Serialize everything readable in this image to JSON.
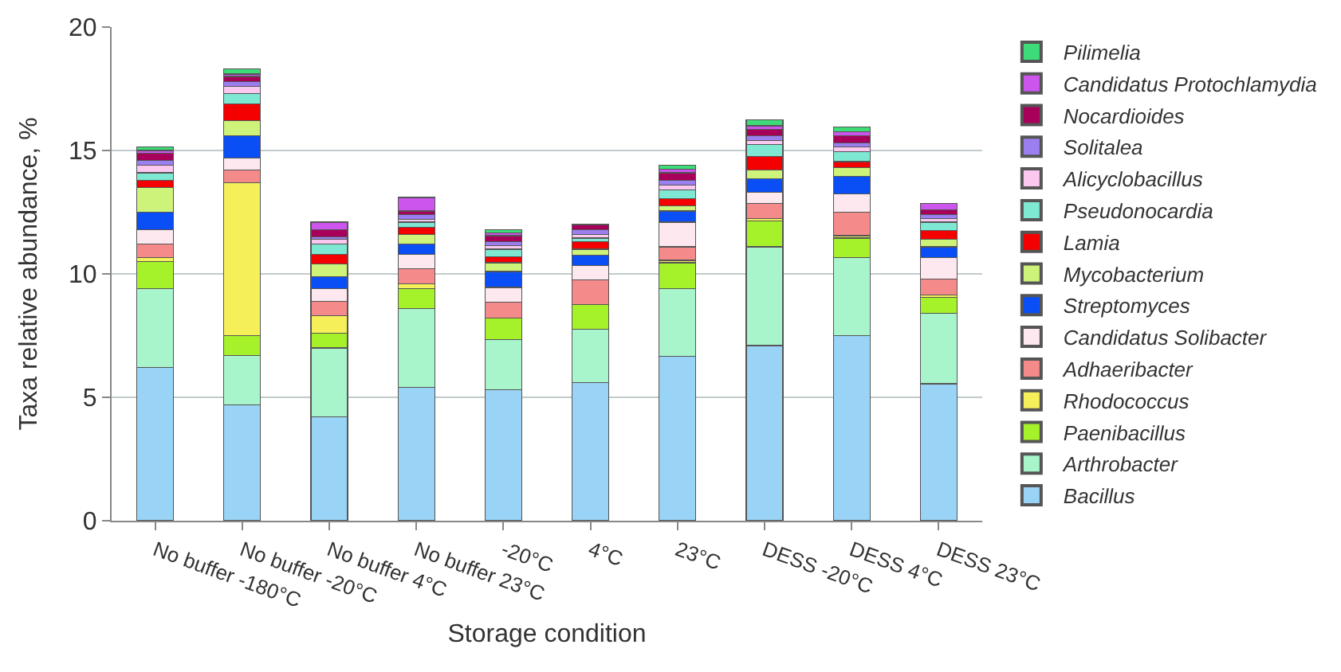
{
  "chart_data": {
    "type": "bar",
    "stacked": true,
    "xlabel": "Storage condition",
    "ylabel": "Taxa relative abundance, %",
    "categories": [
      "No buffer -180°C",
      "No buffer -20°C",
      "No buffer 4°C",
      "No buffer 23°C",
      "-20°C",
      "4°C",
      "23°C",
      "DESS -20°C",
      "DESS 4°C",
      "DESS 23°C"
    ],
    "ylim": [
      0,
      20
    ],
    "yticks": [
      0,
      5,
      10,
      15,
      20
    ],
    "grid": "y",
    "legend": "right",
    "series": [
      {
        "name": "Bacillus",
        "color": "#99d3f5",
        "values": [
          6.2,
          4.7,
          4.2,
          5.4,
          5.3,
          5.6,
          6.65,
          7.1,
          7.5,
          5.55
        ]
      },
      {
        "name": "Arthrobacter",
        "color": "#a8f5cc",
        "values": [
          3.2,
          2.0,
          2.8,
          3.2,
          2.05,
          2.15,
          2.75,
          4.0,
          3.15,
          2.85
        ]
      },
      {
        "name": "Paenibacillus",
        "color": "#a6f22a",
        "values": [
          1.1,
          0.8,
          0.6,
          0.8,
          0.85,
          1.0,
          1.05,
          1.05,
          0.8,
          0.65
        ]
      },
      {
        "name": "Rhodococcus",
        "color": "#f5f05a",
        "values": [
          0.15,
          6.2,
          0.7,
          0.2,
          0,
          0,
          0.1,
          0.1,
          0.1,
          0.1
        ]
      },
      {
        "name": "Adhaeribacter",
        "color": "#f58a8a",
        "values": [
          0.55,
          0.5,
          0.6,
          0.6,
          0.65,
          1.0,
          0.55,
          0.6,
          0.95,
          0.65
        ]
      },
      {
        "name": "Candidatus Solibacter",
        "color": "#fde8ef",
        "values": [
          0.6,
          0.5,
          0.5,
          0.6,
          0.6,
          0.6,
          1.0,
          0.45,
          0.75,
          0.85
        ]
      },
      {
        "name": "Streptomyces",
        "color": "#0a4ff5",
        "values": [
          0.7,
          0.9,
          0.5,
          0.4,
          0.65,
          0.4,
          0.45,
          0.55,
          0.7,
          0.45
        ]
      },
      {
        "name": "Mycobacterium",
        "color": "#cdf37a",
        "values": [
          1.0,
          0.6,
          0.5,
          0.4,
          0.35,
          0.25,
          0.2,
          0.35,
          0.35,
          0.3
        ]
      },
      {
        "name": "Lamia",
        "color": "#f50000",
        "values": [
          0.3,
          0.7,
          0.4,
          0.3,
          0.25,
          0.3,
          0.3,
          0.55,
          0.25,
          0.35
        ]
      },
      {
        "name": "Pseudonocardia",
        "color": "#7ee8d2",
        "values": [
          0.3,
          0.4,
          0.4,
          0.2,
          0.3,
          0.15,
          0.35,
          0.5,
          0.4,
          0.35
        ]
      },
      {
        "name": "Alicyclobacillus",
        "color": "#fbc8f0",
        "values": [
          0.3,
          0.3,
          0.2,
          0.1,
          0.15,
          0.15,
          0.2,
          0.15,
          0.2,
          0.15
        ]
      },
      {
        "name": "Solitalea",
        "color": "#9b7ff0",
        "values": [
          0.2,
          0.2,
          0.1,
          0.2,
          0.15,
          0.2,
          0.2,
          0.2,
          0.15,
          0.15
        ]
      },
      {
        "name": "Nocardioides",
        "color": "#a8005a",
        "values": [
          0.3,
          0.2,
          0.3,
          0.15,
          0.25,
          0.2,
          0.3,
          0.25,
          0.3,
          0.2
        ]
      },
      {
        "name": "Candidatus Protochlamydia",
        "color": "#cc55ee",
        "values": [
          0.1,
          0.1,
          0.3,
          0.55,
          0.1,
          0,
          0.15,
          0.15,
          0.15,
          0.25
        ]
      },
      {
        "name": "Pilimelia",
        "color": "#3ddc78",
        "values": [
          0.15,
          0.2,
          0,
          0,
          0.15,
          0,
          0.15,
          0.25,
          0.2,
          0
        ]
      }
    ]
  }
}
